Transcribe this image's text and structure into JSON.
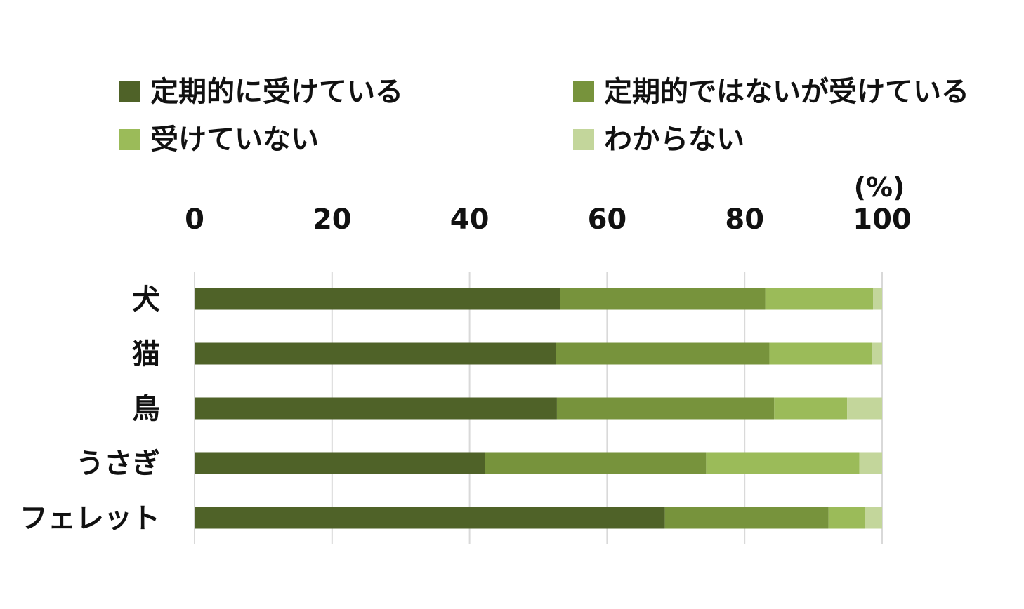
{
  "chart_data": {
    "type": "bar",
    "orientation": "horizontal",
    "stacked": true,
    "unit": "(%)",
    "categories": [
      "犬",
      "猫",
      "鳥",
      "うさぎ",
      "フェレット"
    ],
    "series": [
      {
        "name": "定期的に受けている",
        "color": "#4f6228",
        "values": [
          53.2,
          52.6,
          52.7,
          42.2,
          68.4
        ]
      },
      {
        "name": "定期的ではないが受けている",
        "color": "#77933c",
        "values": [
          29.8,
          31.0,
          31.6,
          32.2,
          23.8
        ]
      },
      {
        "name": "受けていない",
        "color": "#9bbb59",
        "values": [
          15.7,
          15.0,
          10.6,
          22.3,
          5.3
        ]
      },
      {
        "name": "わからない",
        "color": "#c3d69b",
        "values": [
          1.3,
          1.4,
          5.1,
          3.3,
          2.5
        ]
      }
    ],
    "xlim": [
      0,
      100
    ],
    "xticks": [
      "0",
      "20",
      "40",
      "60",
      "80",
      "100"
    ],
    "grid": true,
    "legend_position": "top"
  }
}
